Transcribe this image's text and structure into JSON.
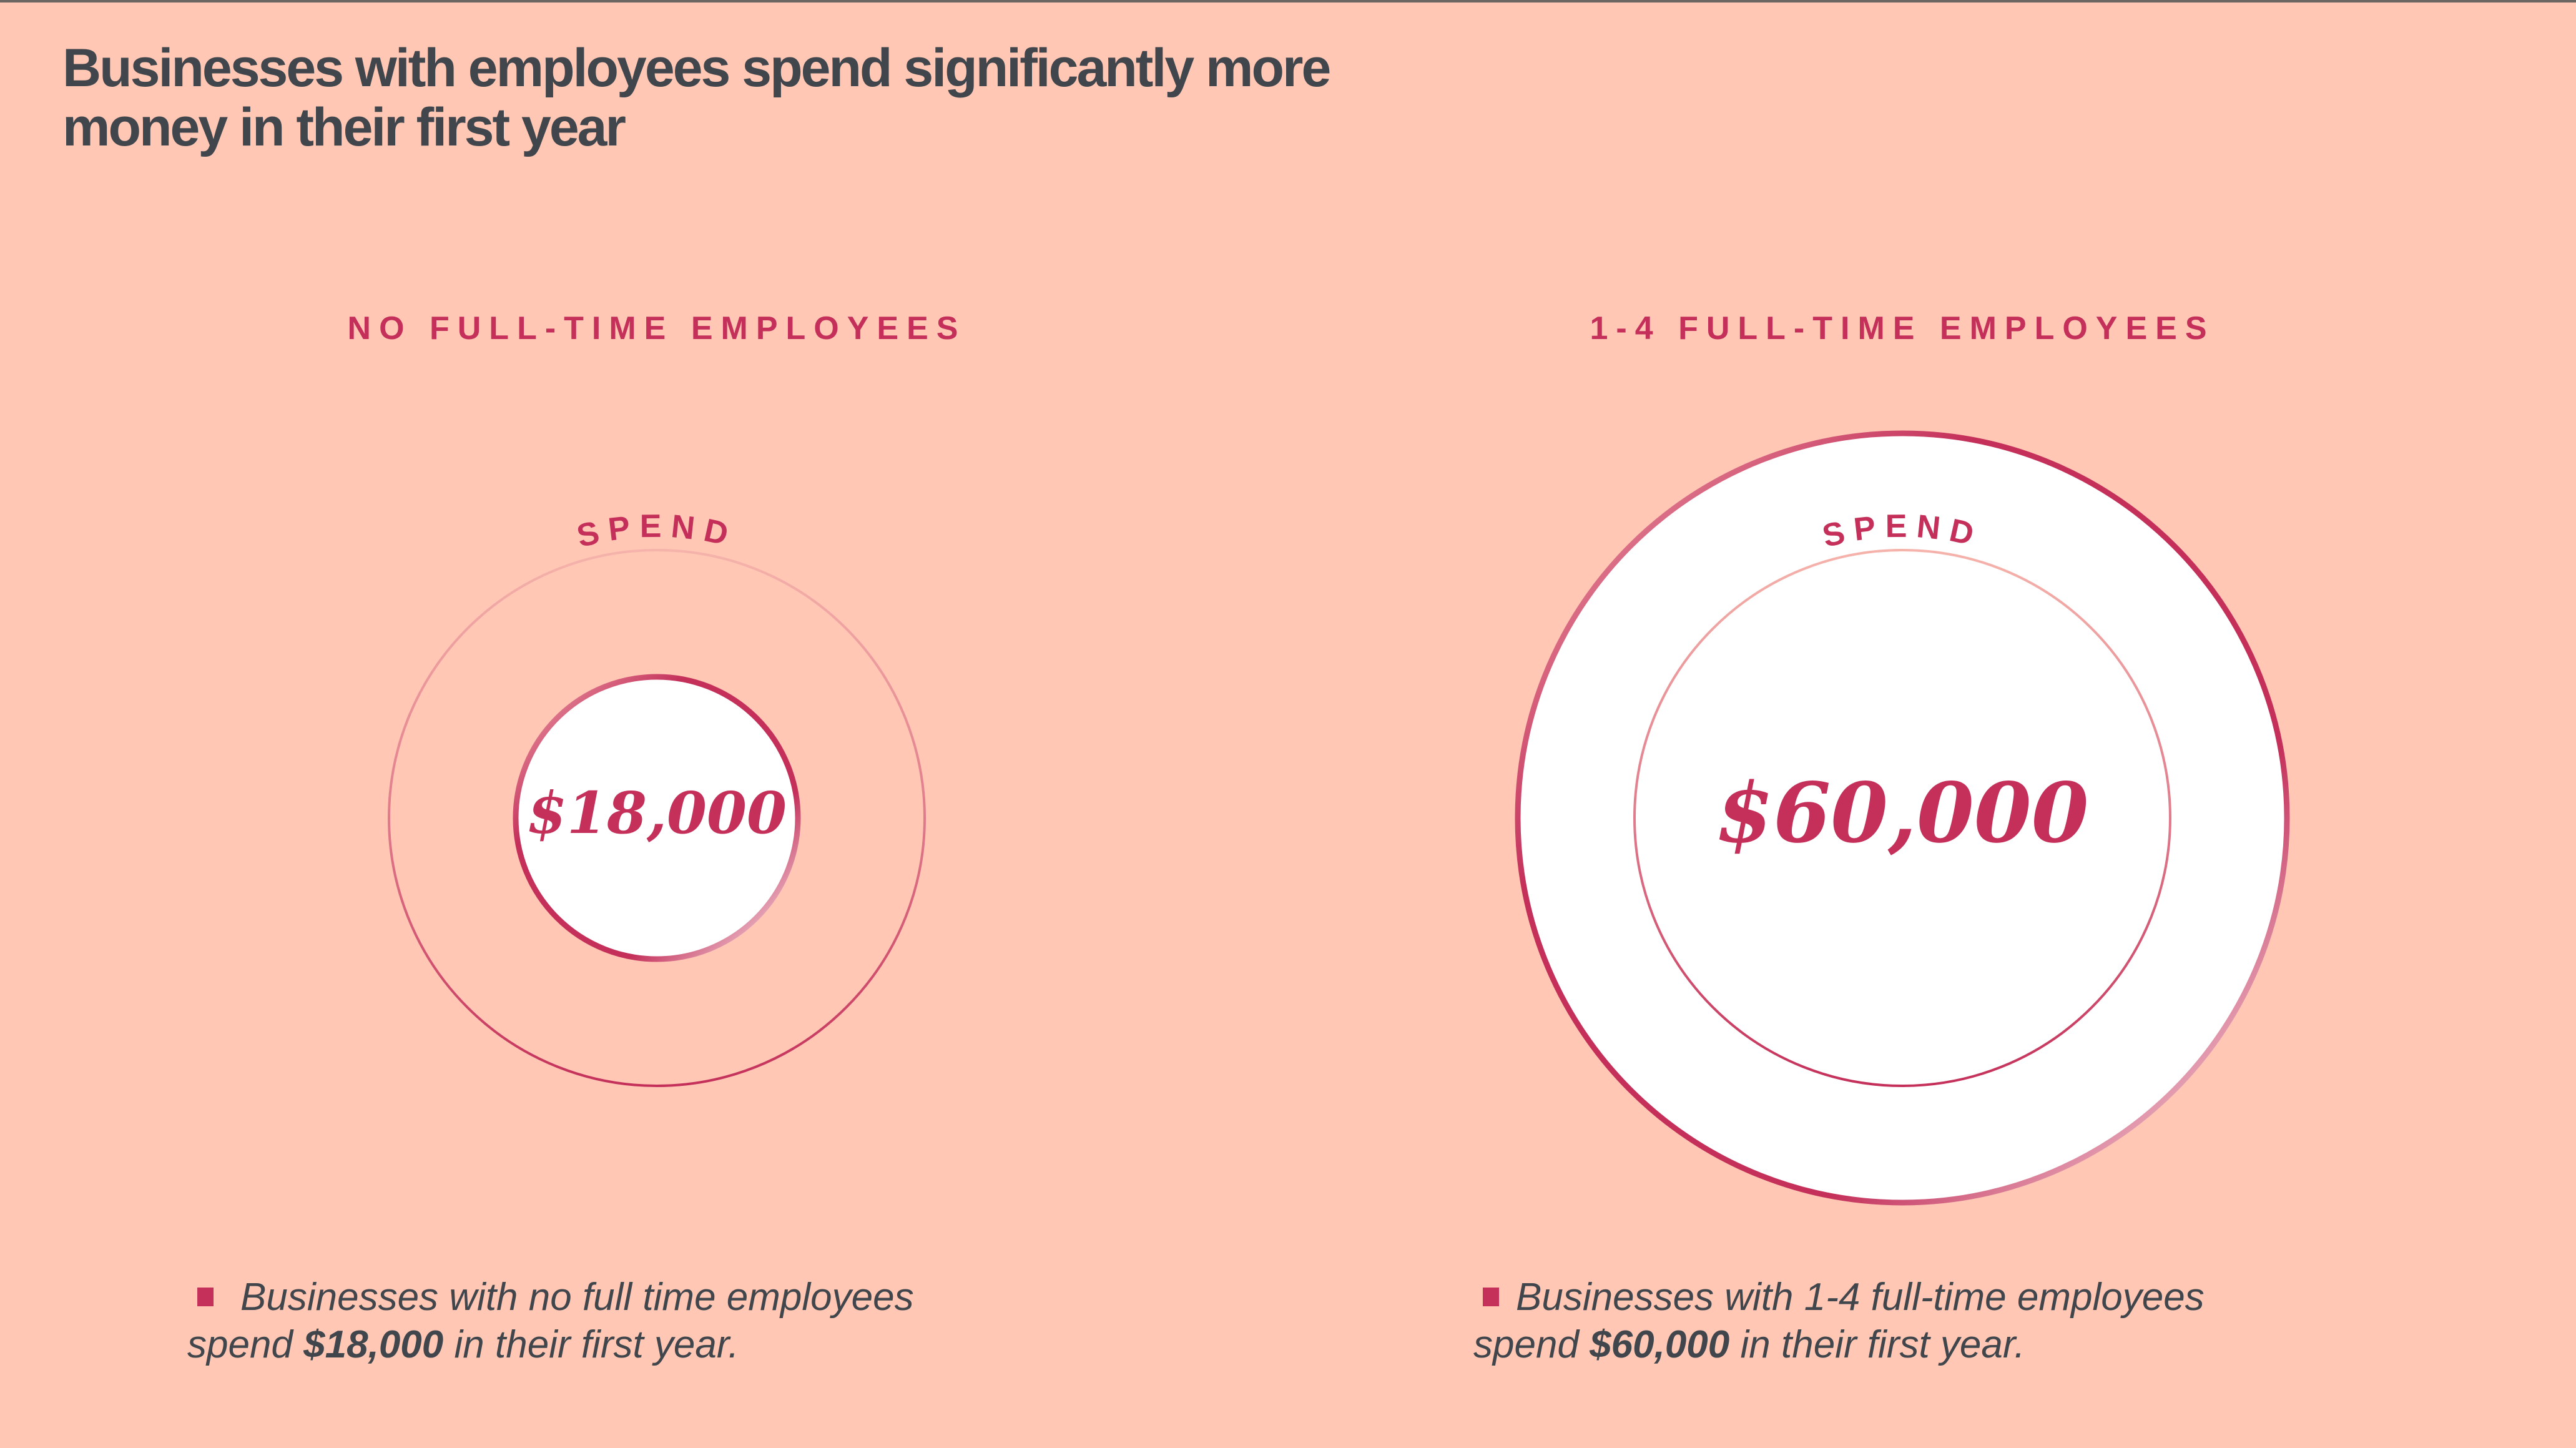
{
  "title": "Businesses with employees spend significantly more money in their first year",
  "colors": {
    "background": "#ffc7b4",
    "accent": "#c4305a",
    "text": "#40464c"
  },
  "panels": [
    {
      "heading": "NO FULL-TIME EMPLOYEES",
      "arc_label": "SPEND",
      "amount": "$18,000",
      "value": 18000,
      "note_pre": "Businesses with no full time employees spend ",
      "note_bold": "$18,000",
      "note_post": " in their first year."
    },
    {
      "heading": "1-4 FULL-TIME EMPLOYEES",
      "arc_label": "SPEND",
      "amount": "$60,000",
      "value": 60000,
      "note_pre": "Businesses with 1-4 full-time employees spend ",
      "note_bold": "$60,000",
      "note_post": " in their first year."
    }
  ]
}
